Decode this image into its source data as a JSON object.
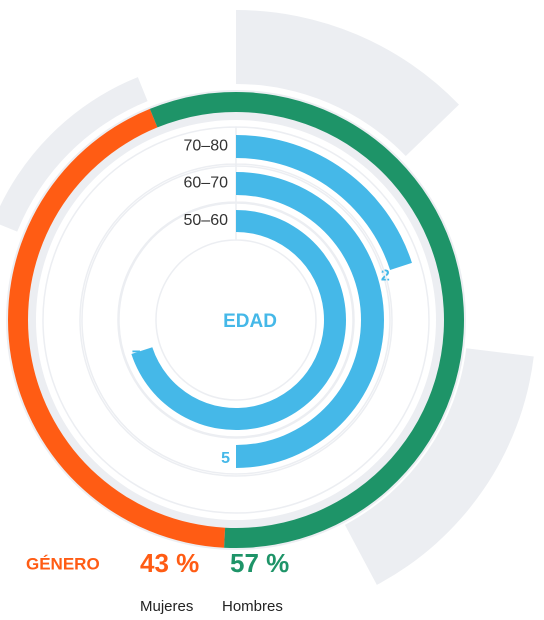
{
  "chart_data": [
    {
      "type": "donut",
      "title": "GÉNERO",
      "categories": [
        "Mujeres",
        "Hombres"
      ],
      "values": [
        43,
        57
      ],
      "value_labels": [
        "43 %",
        "57 %"
      ],
      "colors": [
        "#ff5c14",
        "#1e9468"
      ]
    },
    {
      "type": "radial-bar",
      "title": "EDAD",
      "categories": [
        "70–80",
        "60–70",
        "50–60"
      ],
      "values": [
        2,
        5,
        7
      ],
      "rlim": [
        0,
        10
      ],
      "color": "#45b8e8"
    }
  ]
}
